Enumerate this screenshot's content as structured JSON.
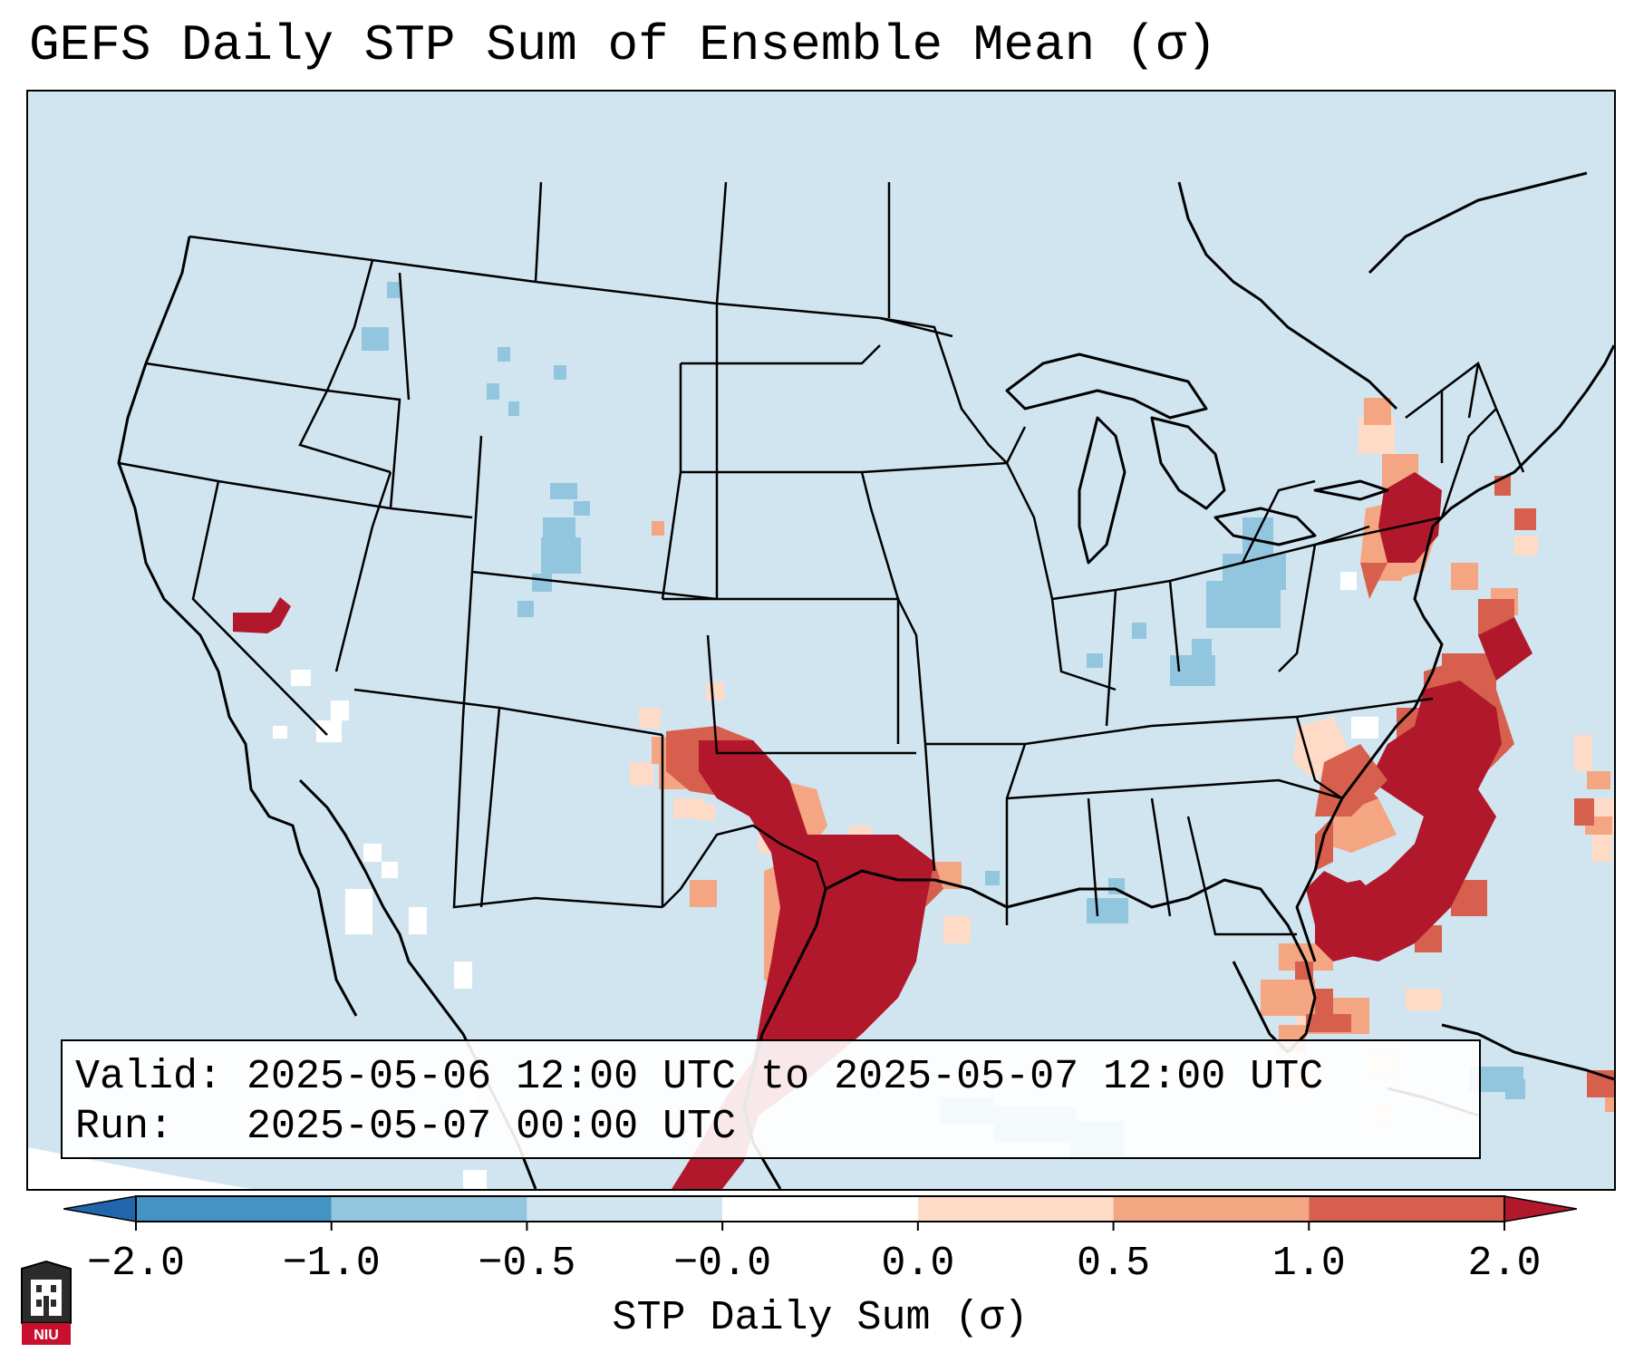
{
  "title": "GEFS Daily STP Sum of Ensemble Mean (σ)",
  "info": {
    "valid_line": "Valid: 2025-05-06 12:00 UTC to 2025-05-07 12:00 UTC",
    "run_line": "Run:   2025-05-07 00:00 UTC"
  },
  "colorbar": {
    "label": "STP Daily Sum (σ)",
    "ticks": [
      "−2.0",
      "−1.0",
      "−0.5",
      "−0.0",
      "0.0",
      "0.5",
      "1.0",
      "2.0"
    ],
    "bins": [
      {
        "from": "-2.0",
        "to": "-1.0",
        "color": "#4393c3"
      },
      {
        "from": "-1.0",
        "to": "-0.5",
        "color": "#92c5de"
      },
      {
        "from": "-0.5",
        "to": "-0.0",
        "color": "#d1e5f0"
      },
      {
        "from": "-0.0",
        "to": "0.0",
        "color": "#ffffff"
      },
      {
        "from": "0.0",
        "to": "0.5",
        "color": "#fddbc7"
      },
      {
        "from": "0.5",
        "to": "1.0",
        "color": "#f4a582"
      },
      {
        "from": "1.0",
        "to": "2.0",
        "color": "#d6604d"
      }
    ],
    "extend_low_color": "#2166ac",
    "extend_high_color": "#b2182b"
  },
  "logo": {
    "text": "NIU",
    "color": "#c8102e"
  },
  "map_colors": {
    "background": "#d1e5f0",
    "outside": "#ffffff",
    "strong_positive": "#b2182b",
    "positive": "#d6604d",
    "weak_positive": "#f4a582",
    "slight_positive": "#fddbc7",
    "near_zero": "#ffffff",
    "slight_negative": "#92c5de"
  }
}
